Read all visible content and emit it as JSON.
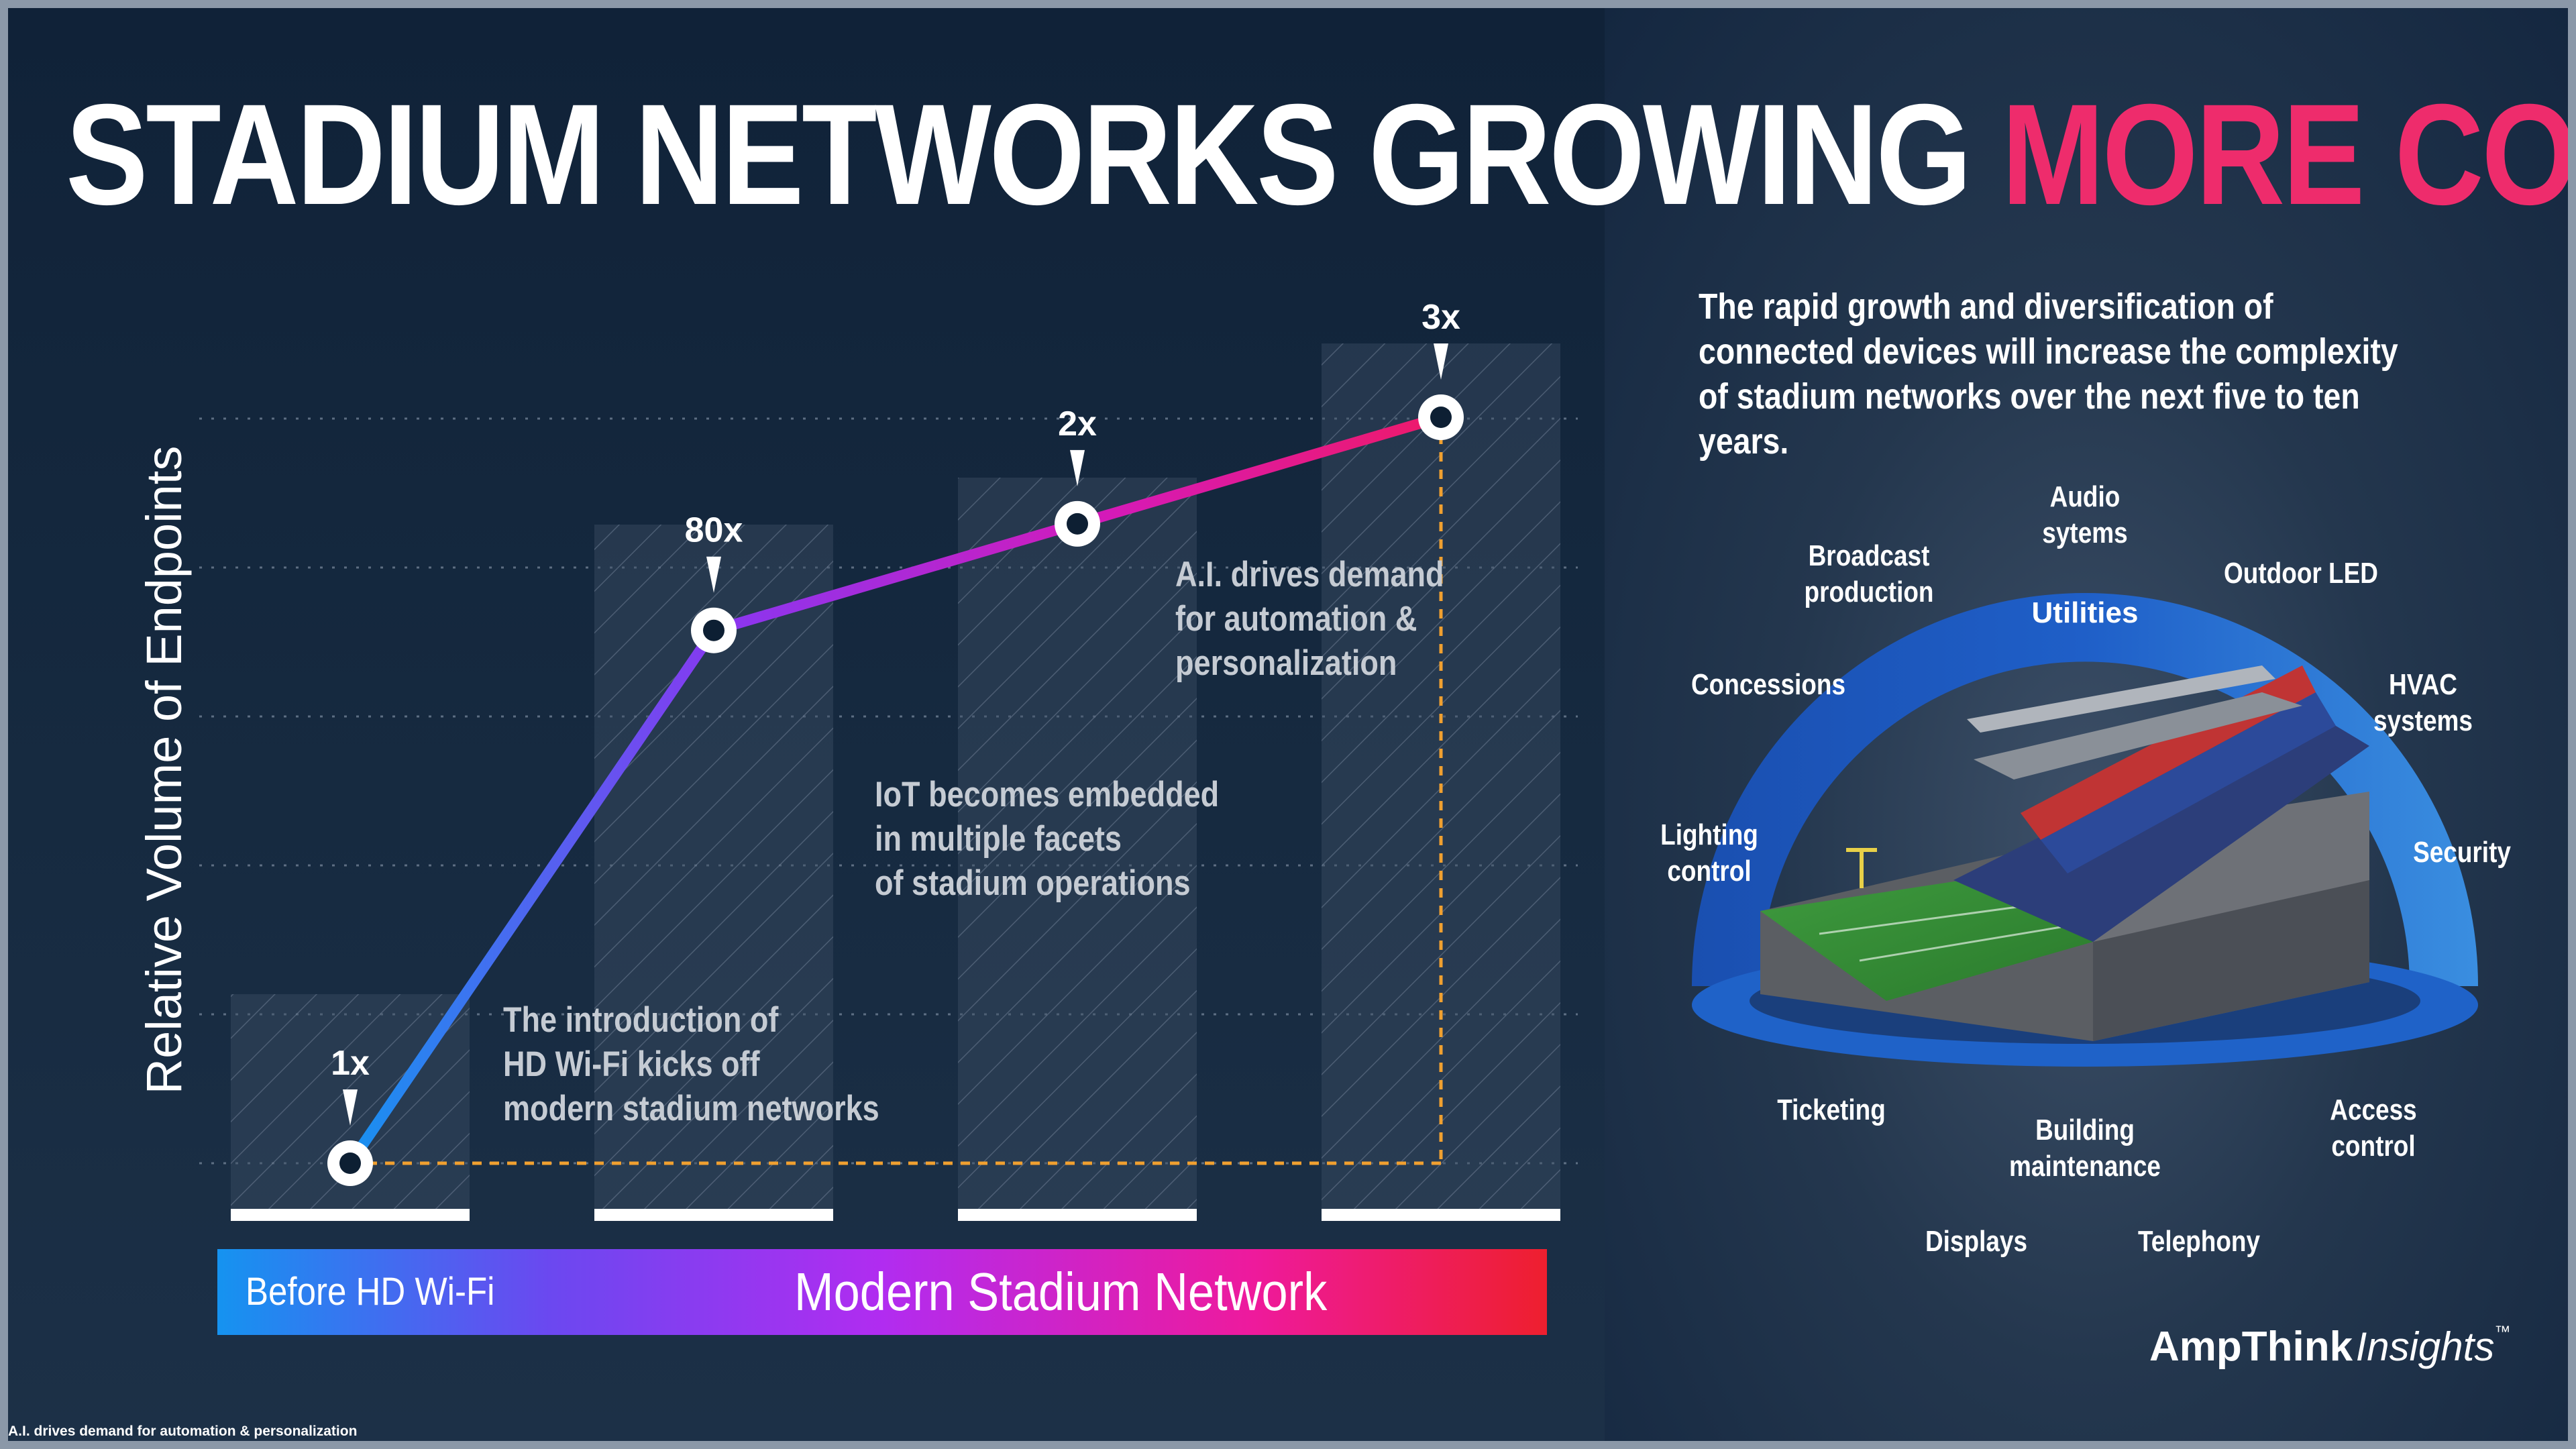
{
  "title": {
    "part1": "STADIUM NETWORKS GROWING",
    "part2": "MORE COMPLEX"
  },
  "chart_data": {
    "type": "line",
    "ylabel": "Relative Volume of Endpoints",
    "points": [
      {
        "label": "1x",
        "level": 0.0
      },
      {
        "label": "80x",
        "level": 0.6
      },
      {
        "label": "2x",
        "level": 0.72
      },
      {
        "label": "3x",
        "level": 0.84
      }
    ],
    "annotations": [
      "The introduction of\nHD Wi-Fi kicks off\nmodern stadium networks",
      "IoT becomes embedded\nin multiple facets\nof stadium operations",
      "A.I. drives demand\nfor automation &\npersonalization"
    ],
    "phases": [
      "Before HD Wi-Fi",
      "Modern Stadium Network"
    ],
    "grid": true,
    "colors": {
      "start": "#1593f0",
      "mid": "#8a36f0",
      "end": "#ee1a6a",
      "guide": "#f0a030"
    }
  },
  "right": {
    "intro": "The rapid growth and diversification of connected devices will increase the complexity of stadium networks over the next five to ten years.",
    "center_label": "Utilities",
    "systems": [
      "Audio\nsytems",
      "Broadcast\nproduction",
      "Outdoor LED",
      "Concessions",
      "HVAC systems",
      "Lighting\ncontrol",
      "Security",
      "Ticketing",
      "Building\nmaintenance",
      "Access control",
      "Displays",
      "Telephony"
    ],
    "brand": {
      "name": "AmpThink",
      "sub": "Insights",
      "tm": "™"
    }
  },
  "footnote": "A.I. drives demand for automation & personalization"
}
